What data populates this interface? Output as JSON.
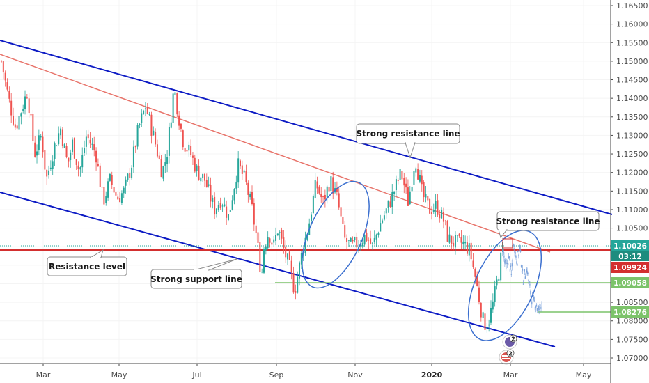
{
  "chart_data": {
    "type": "candlestick",
    "x_ticks": [
      "Mar",
      "May",
      "Jul",
      "Sep",
      "Nov",
      "2020",
      "Mar",
      "May"
    ],
    "y_ticks": [
      "1.16500",
      "1.16000",
      "1.15500",
      "1.15000",
      "1.14500",
      "1.14000",
      "1.13500",
      "1.13000",
      "1.12500",
      "1.12000",
      "1.11500",
      "1.11000",
      "1.10500",
      "1.10000",
      "1.09500",
      "1.09000",
      "1.08500",
      "1.08000",
      "1.07500",
      "1.07000"
    ],
    "ylim": [
      1.0685,
      1.1665
    ],
    "price_path": [
      [
        0,
        1.15
      ],
      [
        0.03,
        1.14
      ],
      [
        0.06,
        1.132
      ],
      [
        0.09,
        1.138
      ],
      [
        0.11,
        1.142
      ],
      [
        0.14,
        1.125
      ],
      [
        0.17,
        1.13
      ],
      [
        0.19,
        1.118
      ],
      [
        0.22,
        1.126
      ],
      [
        0.25,
        1.132
      ],
      [
        0.28,
        1.122
      ],
      [
        0.3,
        1.128
      ],
      [
        0.33,
        1.12
      ],
      [
        0.36,
        1.13
      ],
      [
        0.4,
        1.125
      ],
      [
        0.43,
        1.112
      ],
      [
        0.46,
        1.118
      ],
      [
        0.49,
        1.113
      ],
      [
        0.52,
        1.115
      ],
      [
        0.55,
        1.122
      ],
      [
        0.58,
        1.132
      ],
      [
        0.61,
        1.138
      ],
      [
        0.65,
        1.128
      ],
      [
        0.68,
        1.12
      ],
      [
        0.7,
        1.125
      ],
      [
        0.73,
        1.143
      ],
      [
        0.75,
        1.135
      ],
      [
        0.77,
        1.128
      ],
      [
        0.8,
        1.125
      ],
      [
        0.83,
        1.12
      ],
      [
        0.86,
        1.118
      ],
      [
        0.9,
        1.11
      ],
      [
        0.93,
        1.113
      ],
      [
        0.96,
        1.108
      ],
      [
        1.0,
        1.122
      ],
      [
        1.03,
        1.118
      ],
      [
        1.06,
        1.11
      ],
      [
        1.08,
        1.102
      ],
      [
        1.1,
        1.092
      ],
      [
        1.11,
        1.1
      ],
      [
        1.13,
        1.104
      ],
      [
        1.15,
        1.1
      ],
      [
        1.17,
        1.105
      ],
      [
        1.19,
        1.1
      ],
      [
        1.22,
        1.094
      ],
      [
        1.24,
        1.088
      ],
      [
        1.27,
        1.098
      ],
      [
        1.3,
        1.106
      ],
      [
        1.33,
        1.117
      ],
      [
        1.36,
        1.112
      ],
      [
        1.39,
        1.118
      ],
      [
        1.42,
        1.113
      ],
      [
        1.45,
        1.102
      ],
      [
        1.48,
        1.1
      ],
      [
        1.51,
        1.101
      ],
      [
        1.54,
        1.103
      ],
      [
        1.57,
        1.1
      ],
      [
        1.6,
        1.106
      ],
      [
        1.63,
        1.11
      ],
      [
        1.66,
        1.115
      ],
      [
        1.69,
        1.12
      ],
      [
        1.72,
        1.112
      ],
      [
        1.75,
        1.124
      ],
      [
        1.78,
        1.114
      ],
      [
        1.81,
        1.11
      ],
      [
        1.84,
        1.111
      ],
      [
        1.87,
        1.107
      ],
      [
        1.89,
        1.102
      ],
      [
        1.92,
        1.101
      ],
      [
        1.95,
        1.101
      ],
      [
        1.98,
        1.099
      ],
      [
        2.0,
        1.093
      ],
      [
        2.02,
        1.086
      ],
      [
        2.04,
        1.079
      ],
      [
        2.06,
        1.08
      ],
      [
        2.08,
        1.085
      ],
      [
        2.1,
        1.092
      ],
      [
        2.12,
        1.1
      ]
    ],
    "current_price": "1.10026",
    "countdown": "03:12",
    "resistance_price": "1.09924",
    "support_price_1": "1.09058",
    "support_price_2": "1.08276",
    "resistance_line_price": 1.09924,
    "support_line_1_price": 1.09058,
    "support_line_2_price": 1.08276,
    "current_line_price": 1.10026,
    "colors": {
      "up": "#26a69a",
      "down": "#ef5350",
      "channel": "#0d1bc4",
      "midline": "#e8736a",
      "resistance": "#d32f2f",
      "support": "#7cc36a",
      "projection": "#6f9ad8",
      "ellipse": "#3b6fcf",
      "current_label": "#26a69a",
      "countdown_label": "#1e8c7e",
      "resistance_label": "#d32f2f",
      "support_label": "#7cc36a"
    }
  },
  "annotations": {
    "resistance_top": "Strong resistance line",
    "resistance_right": "Strong resistance line",
    "resistance_level": "Resistance level",
    "support_line": "Strong support line"
  },
  "badges": {
    "event_count_1": "2",
    "event_count_2": "2"
  }
}
